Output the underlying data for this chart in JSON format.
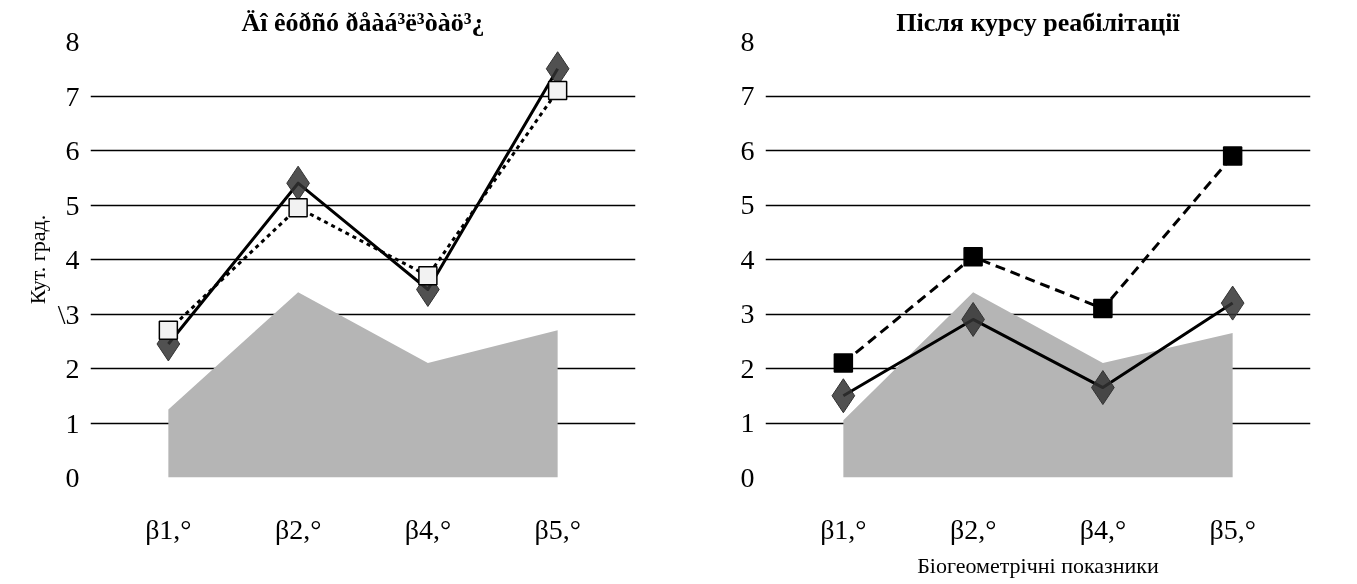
{
  "chart_data": [
    {
      "type": "line",
      "title": "Äî êóðñó ðåàá³ë³òàö³¿",
      "ylabel": "Кут. град.",
      "categories": [
        "β1,°",
        "β2,°",
        "β4,°",
        "β5,°"
      ],
      "ylim": [
        0,
        8
      ],
      "yticks": [
        0,
        1,
        2,
        {
          "value": 3,
          "label": "\\3"
        },
        4,
        5,
        6,
        7,
        8
      ],
      "grid": "y",
      "series": [
        {
          "type": "area",
          "color": "#b5b5b5",
          "values": [
            1.25,
            3.4,
            2.1,
            2.7
          ]
        },
        {
          "color": "#000000",
          "marker": "diamond",
          "line_style": "solid",
          "values": [
            2.45,
            5.4,
            3.45,
            7.5
          ]
        },
        {
          "color": "#000000",
          "marker": "square",
          "line_style": "dotted",
          "values": [
            2.7,
            4.95,
            3.7,
            7.1
          ]
        }
      ]
    },
    {
      "type": "line",
      "title": "Після курсу реабілітації",
      "xlabel": "Біогеометрічні показники",
      "categories": [
        "β1,°",
        "β2,°",
        "β4,°",
        "β5,°"
      ],
      "ylim": [
        0,
        8
      ],
      "yticks": [
        0,
        1,
        2,
        3,
        4,
        5,
        6,
        7,
        8
      ],
      "grid": "y",
      "series": [
        {
          "type": "area",
          "color": "#b5b5b5",
          "values": [
            1.05,
            3.4,
            2.1,
            2.65
          ]
        },
        {
          "color": "#000000",
          "marker": "square",
          "line_style": "dashed",
          "values": [
            2.1,
            4.05,
            3.1,
            5.9
          ]
        },
        {
          "color": "#000000",
          "marker": "diamond",
          "line_style": "solid",
          "values": [
            1.5,
            2.9,
            1.65,
            3.2
          ]
        }
      ]
    }
  ]
}
